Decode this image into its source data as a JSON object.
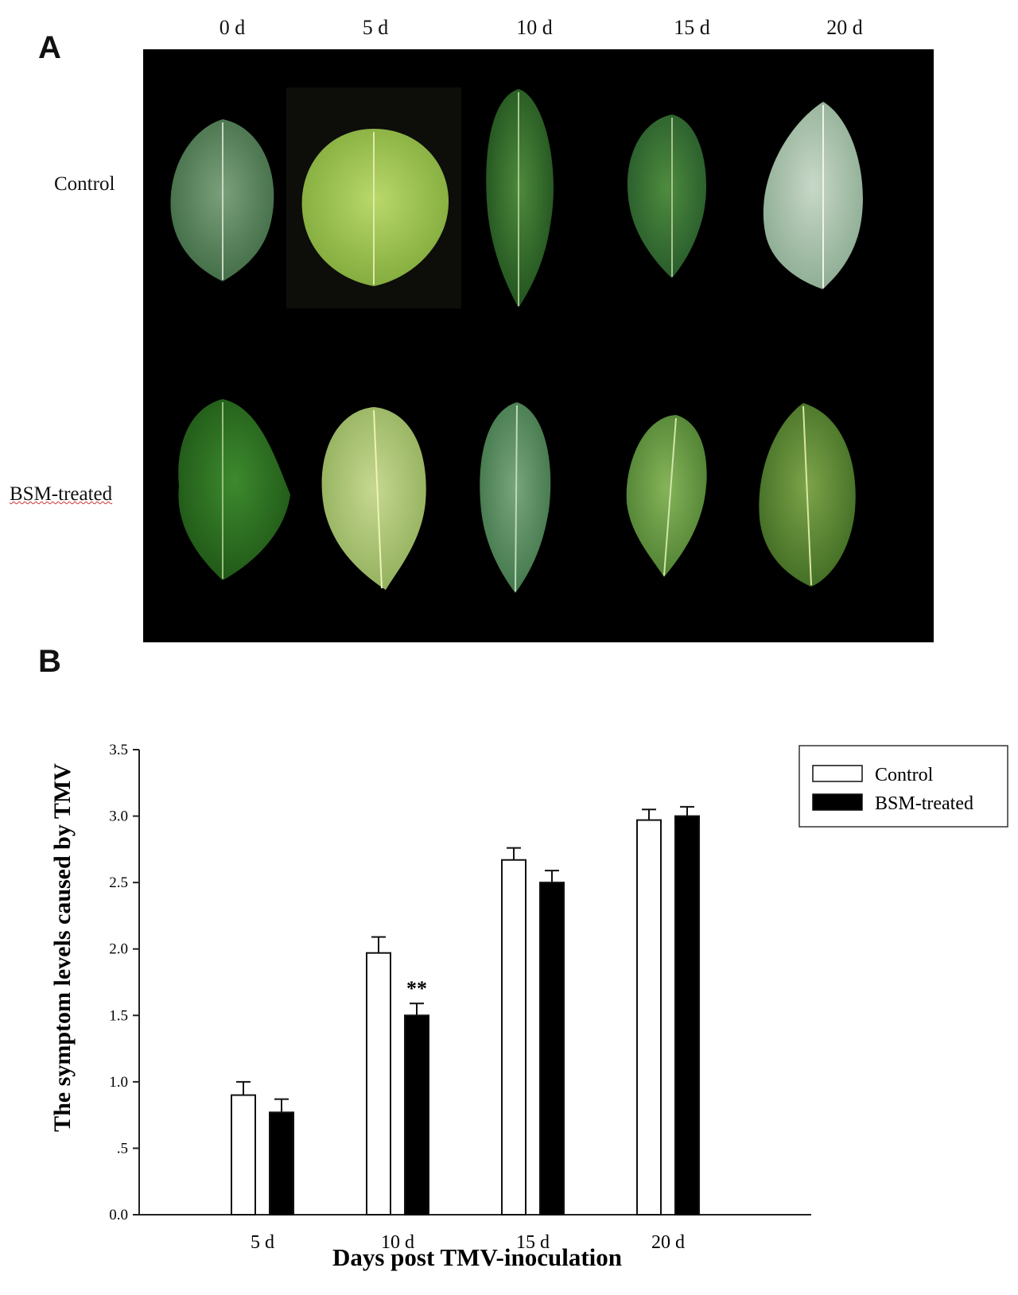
{
  "panel_a": {
    "label": "A",
    "days": [
      "0 d",
      "5 d",
      "10 d",
      "15 d",
      "20 d"
    ],
    "rows": [
      "Control",
      "BSM-treated"
    ]
  },
  "panel_b": {
    "label": "B"
  },
  "colors": {
    "photo_background": "#000000",
    "control_bar": "#ffffff",
    "bsm_bar": "#000000"
  },
  "chart_data": {
    "type": "bar",
    "categories": [
      "5 d",
      "10 d",
      "15 d",
      "20 d"
    ],
    "series": [
      {
        "name": "Control",
        "values": [
          0.9,
          1.97,
          2.67,
          2.97
        ],
        "errors": [
          0.1,
          0.12,
          0.09,
          0.08
        ],
        "color": "#ffffff"
      },
      {
        "name": "BSM-treated",
        "values": [
          0.77,
          1.5,
          2.5,
          3.0
        ],
        "errors": [
          0.1,
          0.09,
          0.09,
          0.07
        ],
        "color": "#000000"
      }
    ],
    "annotations": [
      {
        "category": "10 d",
        "series": "BSM-treated",
        "text": "**"
      }
    ],
    "xlabel": "Days post TMV-inoculation",
    "ylabel": "The symptom levels caused by TMV",
    "ylim": [
      0,
      3.5
    ],
    "yticks": [
      0.0,
      0.5,
      1.0,
      1.5,
      2.0,
      2.5,
      3.0,
      3.5
    ],
    "ytick_labels": [
      "0.0",
      ".5",
      "1.0",
      "1.5",
      "2.0",
      "2.5",
      "3.0",
      "3.5"
    ],
    "legend_position": "top-right",
    "grid": false
  }
}
